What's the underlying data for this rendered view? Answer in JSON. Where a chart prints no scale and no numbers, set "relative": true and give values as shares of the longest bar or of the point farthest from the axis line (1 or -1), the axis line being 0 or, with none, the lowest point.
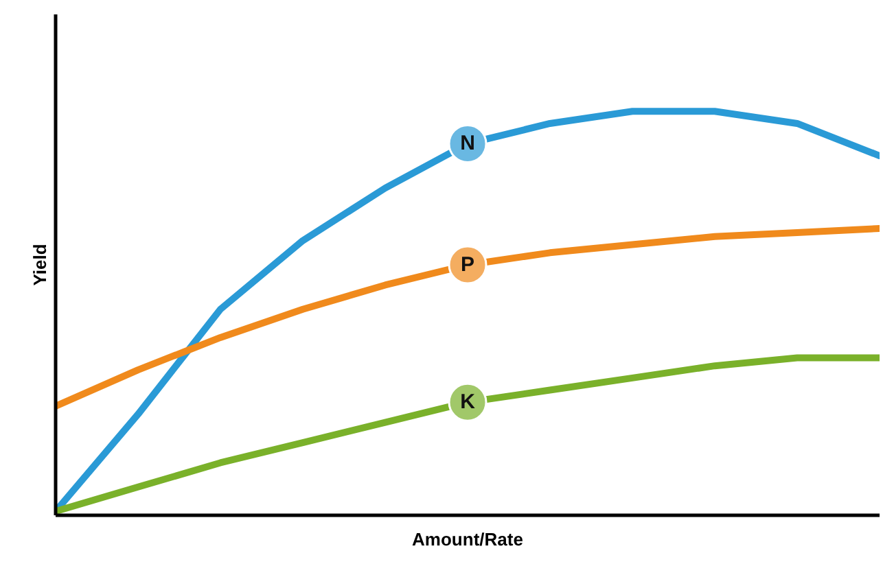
{
  "chart_data": {
    "type": "line",
    "relative": true,
    "xlabel": "Amount/Rate",
    "ylabel": "Yield",
    "categories": [
      null,
      null,
      null,
      null,
      null,
      null,
      null,
      null,
      null,
      null,
      null
    ],
    "grid": false,
    "marker": "none",
    "line_style": "solid",
    "series": [
      {
        "name": "N",
        "color": "#2a9ad6",
        "values": [
          0.01,
          0.25,
          0.51,
          0.68,
          0.81,
          0.92,
          0.97,
          1.0,
          1.0,
          0.97,
          0.89
        ]
      },
      {
        "name": "P",
        "color": "#f08a1c",
        "values": [
          0.27,
          0.36,
          0.44,
          0.51,
          0.57,
          0.62,
          0.65,
          0.67,
          0.69,
          0.7,
          0.71
        ]
      },
      {
        "name": "K",
        "color": "#7ab12a",
        "values": [
          0.01,
          0.07,
          0.13,
          0.18,
          0.23,
          0.28,
          0.31,
          0.34,
          0.37,
          0.39,
          0.39
        ]
      }
    ]
  }
}
